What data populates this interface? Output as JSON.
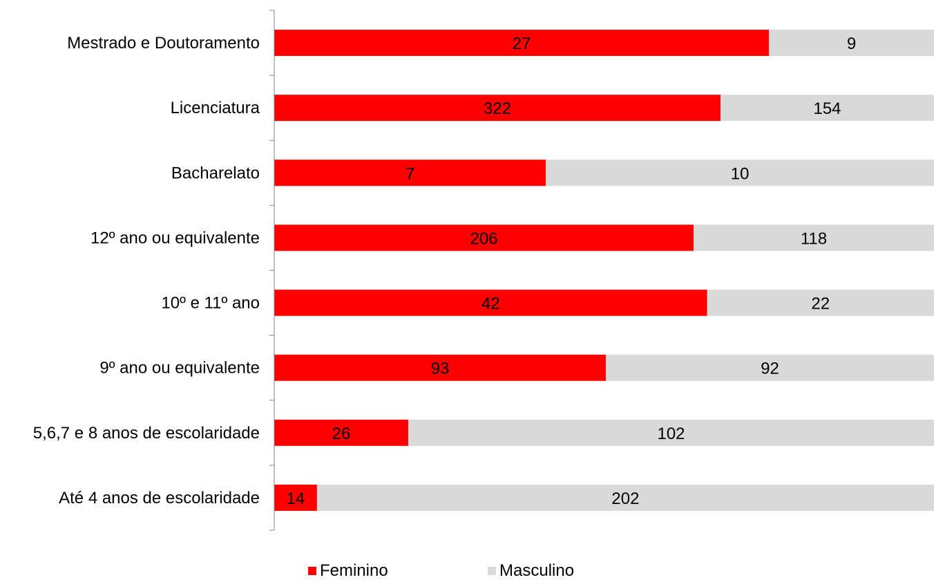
{
  "chart_data": {
    "type": "bar",
    "orientation": "horizontal",
    "stacking": "percent",
    "categories": [
      "Mestrado e Doutoramento",
      "Licenciatura",
      "Bacharelato",
      "12º ano ou equivalente",
      "10º e 11º ano",
      "9º ano ou equivalente",
      "5,6,7 e 8 anos de escolaridade",
      "Até 4 anos de escolaridade"
    ],
    "series": [
      {
        "name": "Feminino",
        "color": "#ff0000",
        "values": [
          27,
          322,
          7,
          206,
          42,
          93,
          26,
          14
        ]
      },
      {
        "name": "Masculino",
        "color": "#d9d9d9",
        "values": [
          9,
          154,
          10,
          118,
          22,
          92,
          102,
          202
        ]
      }
    ],
    "title": "",
    "xlabel": "",
    "ylabel": "",
    "grid": false,
    "legend_position": "bottom"
  }
}
